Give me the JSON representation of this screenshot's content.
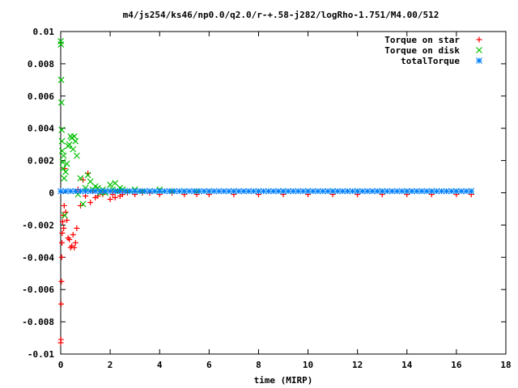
{
  "chart_data": {
    "type": "scatter",
    "title": "m4/js254/ks46/np0.0/q2.0/r-+.58-j282/logRho-1.751/M4.00/512",
    "xlabel": "time (MIRP)",
    "ylabel": "",
    "xlim": [
      0,
      18
    ],
    "ylim": [
      -0.01,
      0.01
    ],
    "xticks": [
      0,
      2,
      4,
      6,
      8,
      10,
      12,
      14,
      16,
      18
    ],
    "xtick_labels": [
      "0",
      "2",
      "4",
      "6",
      "8",
      "10",
      "12",
      "14",
      "16",
      "18"
    ],
    "yticks": [
      -0.01,
      -0.008,
      -0.006,
      -0.004,
      -0.002,
      0,
      0.002,
      0.004,
      0.006,
      0.008,
      0.01
    ],
    "ytick_labels": [
      "-0.01",
      "-0.008",
      "-0.006",
      "-0.004",
      "-0.002",
      "0",
      "0.002",
      "0.004",
      "0.006",
      "0.008",
      "0.01"
    ],
    "grid": false,
    "legend_position": "top-right",
    "series": [
      {
        "name": "Torque on star",
        "marker": "plus",
        "color": "#ff0000",
        "x": [
          0.0,
          0.01,
          0.02,
          0.03,
          0.04,
          0.05,
          0.06,
          0.08,
          0.1,
          0.12,
          0.14,
          0.16,
          0.2,
          0.25,
          0.3,
          0.35,
          0.4,
          0.45,
          0.5,
          0.55,
          0.6,
          0.65,
          0.7,
          0.8,
          0.9,
          1.0,
          1.1,
          1.2,
          1.3,
          1.4,
          1.5,
          1.6,
          1.7,
          1.8,
          2.0,
          2.1,
          2.2,
          2.3,
          2.4,
          2.5,
          2.7,
          3.0,
          3.3,
          3.6,
          4.0,
          4.5,
          5.0,
          5.5,
          6.0,
          7.0,
          8.0,
          9.0,
          10.0,
          11.0,
          12.0,
          13.0,
          14.0,
          15.0,
          16.0,
          16.6
        ],
        "y": [
          -0.0093,
          -0.0091,
          -0.0069,
          -0.0055,
          -0.004,
          -0.0031,
          -0.0025,
          -0.0018,
          -0.0014,
          -0.0022,
          -0.0008,
          0.0015,
          -0.0012,
          -0.0017,
          -0.0028,
          -0.0029,
          -0.0034,
          -0.0033,
          -0.0026,
          -0.0034,
          -0.0031,
          -0.0022,
          0.0002,
          -0.0008,
          0.0008,
          -0.0002,
          0.0012,
          -0.0006,
          0.0001,
          -0.0003,
          -0.0002,
          0.0001,
          -0.0001,
          0.0001,
          -0.0004,
          -0.0001,
          -0.0003,
          0.0001,
          -0.0002,
          -0.0001,
          0.0,
          -0.0001,
          0.0,
          0.0,
          -0.0001,
          0.0,
          -0.0001,
          -0.0001,
          -0.0001,
          -0.0001,
          -0.0001,
          -0.0001,
          -0.0001,
          -0.0001,
          -0.0001,
          -0.0001,
          -0.0001,
          -0.0001,
          -0.0001,
          -0.0001
        ]
      },
      {
        "name": "Torque on disk",
        "marker": "cross",
        "color": "#00c000",
        "x": [
          0.0,
          0.01,
          0.02,
          0.03,
          0.04,
          0.05,
          0.06,
          0.08,
          0.1,
          0.12,
          0.14,
          0.16,
          0.2,
          0.25,
          0.3,
          0.35,
          0.4,
          0.45,
          0.5,
          0.55,
          0.6,
          0.65,
          0.7,
          0.8,
          0.9,
          1.0,
          1.1,
          1.2,
          1.3,
          1.4,
          1.5,
          1.6,
          1.7,
          1.8,
          2.0,
          2.1,
          2.2,
          2.3,
          2.4,
          2.5,
          2.7,
          3.0,
          3.3,
          3.6,
          4.0,
          4.5,
          5.0,
          5.5,
          6.0,
          7.0,
          8.0,
          9.0,
          10.0,
          11.0,
          12.0,
          13.0,
          14.0,
          15.0,
          16.0,
          16.6
        ],
        "y": [
          0.0094,
          0.0092,
          0.007,
          0.0056,
          0.0039,
          0.0032,
          0.0026,
          0.0019,
          0.0015,
          0.0023,
          0.0009,
          -0.0014,
          0.0013,
          0.0018,
          0.0029,
          0.003,
          0.0035,
          0.0034,
          0.0027,
          0.0035,
          0.0032,
          0.0023,
          -0.0001,
          0.0009,
          -0.0007,
          0.0003,
          0.0011,
          0.0007,
          0.0002,
          0.0004,
          0.0003,
          0.0,
          0.0002,
          0.0,
          0.0005,
          0.0002,
          0.0006,
          0.0001,
          0.0003,
          0.0002,
          0.0001,
          0.0002,
          0.0001,
          0.0001,
          0.0002,
          0.0001,
          0.0001,
          0.0001,
          0.0001,
          0.0001,
          0.0001,
          0.0001,
          0.0001,
          0.0001,
          0.0001,
          0.0001,
          0.0001,
          0.0001,
          0.0001,
          0.0001
        ]
      },
      {
        "name": "totalTorque",
        "marker": "star",
        "color": "#0080ff",
        "x": [
          0.0,
          0.2,
          0.4,
          0.6,
          0.8,
          1.0,
          1.2,
          1.4,
          1.6,
          1.8,
          2.0,
          2.2,
          2.4,
          2.6,
          2.8,
          3.0,
          3.2,
          3.4,
          3.6,
          3.8,
          4.0,
          4.2,
          4.4,
          4.6,
          4.8,
          5.0,
          5.2,
          5.4,
          5.6,
          5.8,
          6.0,
          6.2,
          6.4,
          6.6,
          6.8,
          7.0,
          7.2,
          7.4,
          7.6,
          7.8,
          8.0,
          8.2,
          8.4,
          8.6,
          8.8,
          9.0,
          9.2,
          9.4,
          9.6,
          9.8,
          10.0,
          10.2,
          10.4,
          10.6,
          10.8,
          11.0,
          11.2,
          11.4,
          11.6,
          11.8,
          12.0,
          12.2,
          12.4,
          12.6,
          12.8,
          13.0,
          13.2,
          13.4,
          13.6,
          13.8,
          14.0,
          14.2,
          14.4,
          14.6,
          14.8,
          15.0,
          15.2,
          15.4,
          15.6,
          15.8,
          16.0,
          16.2,
          16.4,
          16.6
        ],
        "y": [
          0.0001,
          0.0001,
          0.0001,
          0.0001,
          0.0001,
          0.0001,
          0.0001,
          0.0001,
          0.0001,
          0.0001,
          0.0001,
          0.0001,
          0.0001,
          0.0001,
          0.0001,
          0.0001,
          0.0001,
          0.0001,
          0.0001,
          0.0001,
          0.0001,
          0.0001,
          0.0001,
          0.0001,
          0.0001,
          0.0001,
          0.0001,
          0.0001,
          0.0001,
          0.0001,
          0.0001,
          0.0001,
          0.0001,
          0.0001,
          0.0001,
          0.0001,
          0.0001,
          0.0001,
          0.0001,
          0.0001,
          0.0001,
          0.0001,
          0.0001,
          0.0001,
          0.0001,
          0.0001,
          0.0001,
          0.0001,
          0.0001,
          0.0001,
          0.0001,
          0.0001,
          0.0001,
          0.0001,
          0.0001,
          0.0001,
          0.0001,
          0.0001,
          0.0001,
          0.0001,
          0.0001,
          0.0001,
          0.0001,
          0.0001,
          0.0001,
          0.0001,
          0.0001,
          0.0001,
          0.0001,
          0.0001,
          0.0001,
          0.0001,
          0.0001,
          0.0001,
          0.0001,
          0.0001,
          0.0001,
          0.0001,
          0.0001,
          0.0001,
          0.0001,
          0.0001,
          0.0001,
          0.0001
        ]
      }
    ]
  }
}
